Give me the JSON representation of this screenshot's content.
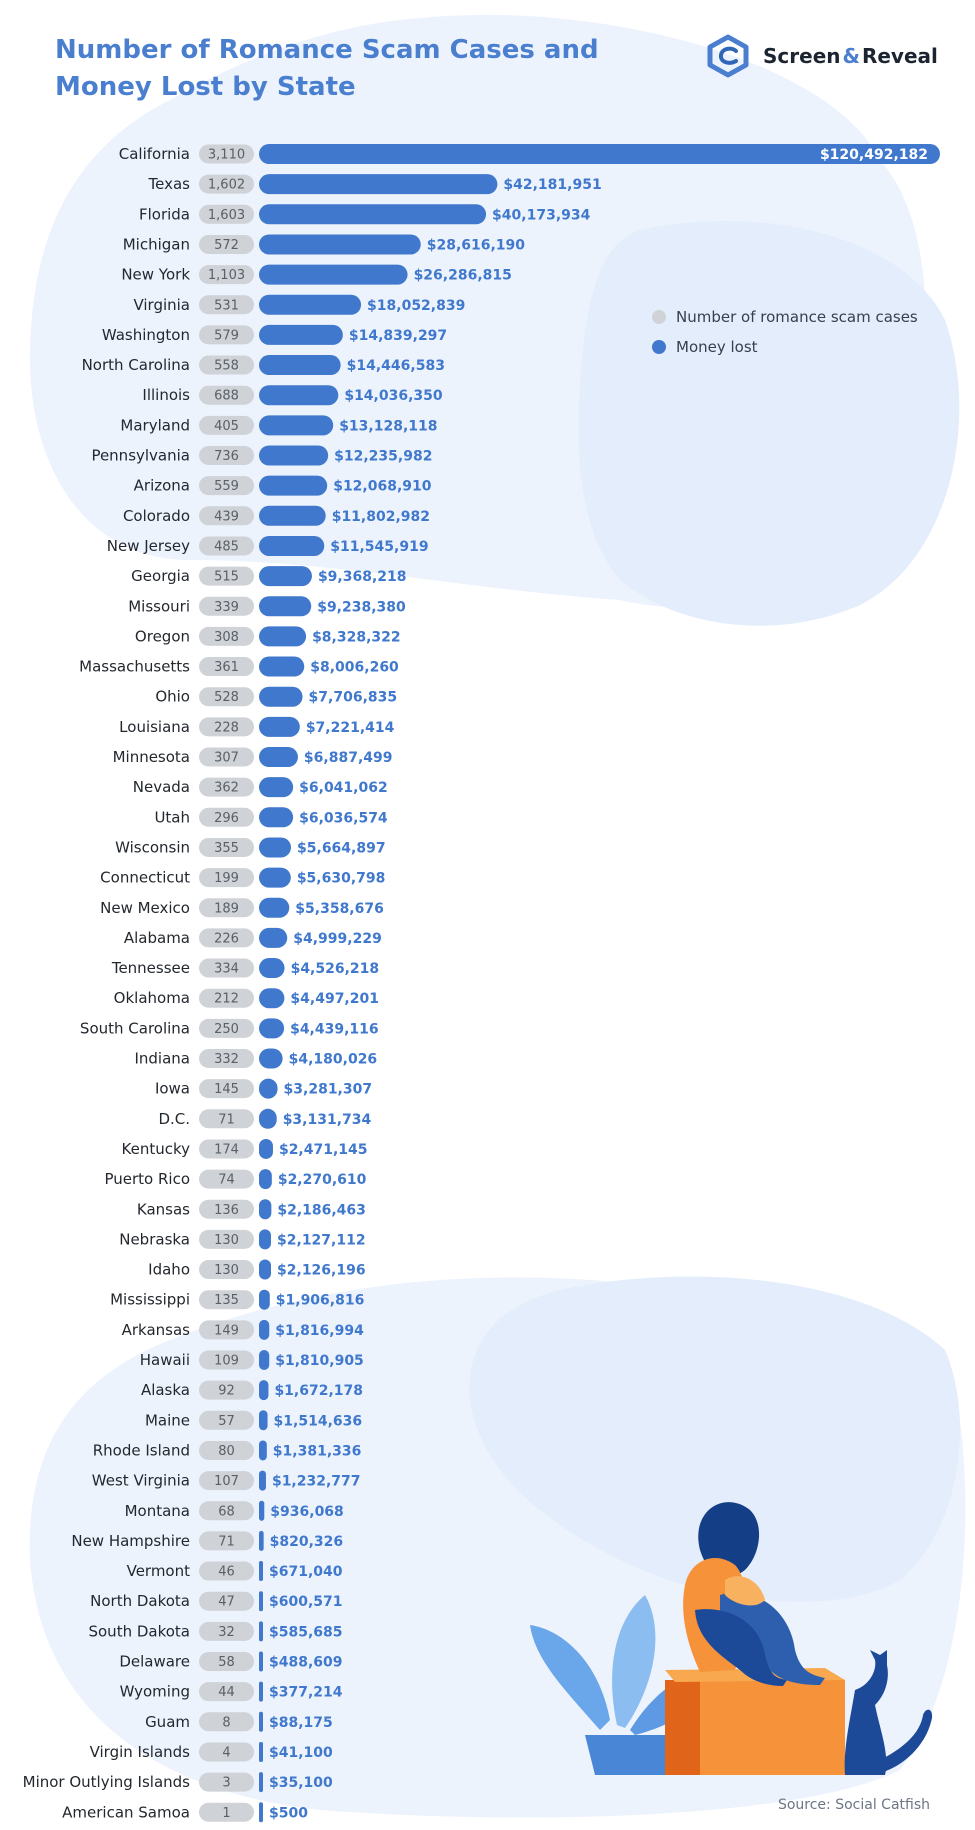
{
  "header": {
    "title": "Number of Romance Scam Cases and Money Lost by State"
  },
  "logo": {
    "icon": "screen-and-reveal-logo-icon",
    "name_part1": "Screen",
    "ampersand": "&",
    "name_part2": "Reveal"
  },
  "legend": {
    "cases_label": "Number of romance scam cases",
    "money_label": "Money lost"
  },
  "colors": {
    "title": "#4a7fd0",
    "bar": "#3f78cc",
    "bar_label": "#3f78cc",
    "cases_pill": "#cfd2d6",
    "cases_text": "#5a6068",
    "state_text": "#23282e",
    "blob": "#edf3fd"
  },
  "source": "Source: Social Catfish",
  "chart_data": {
    "type": "bar",
    "orientation": "horizontal",
    "categories": [
      "California",
      "Texas",
      "Florida",
      "Michigan",
      "New York",
      "Virginia",
      "Washington",
      "North Carolina",
      "Illinois",
      "Maryland",
      "Pennsylvania",
      "Arizona",
      "Colorado",
      "New Jersey",
      "Georgia",
      "Missouri",
      "Oregon",
      "Massachusetts",
      "Ohio",
      "Louisiana",
      "Minnesota",
      "Nevada",
      "Utah",
      "Wisconsin",
      "Connecticut",
      "New Mexico",
      "Alabama",
      "Tennessee",
      "Oklahoma",
      "South Carolina",
      "Indiana",
      "Iowa",
      "D.C.",
      "Kentucky",
      "Puerto Rico",
      "Kansas",
      "Nebraska",
      "Idaho",
      "Mississippi",
      "Arkansas",
      "Hawaii",
      "Alaska",
      "Maine",
      "Rhode Island",
      "West Virginia",
      "Montana",
      "New Hampshire",
      "Vermont",
      "North Dakota",
      "South Dakota",
      "Delaware",
      "Wyoming",
      "Guam",
      "Virgin Islands",
      "Minor Outlying Islands",
      "American Samoa"
    ],
    "series": [
      {
        "name": "Number of romance scam cases",
        "values": [
          3110,
          1602,
          1603,
          572,
          1103,
          531,
          579,
          558,
          688,
          405,
          736,
          559,
          439,
          485,
          515,
          339,
          308,
          361,
          528,
          228,
          307,
          362,
          296,
          355,
          199,
          189,
          226,
          334,
          212,
          250,
          332,
          145,
          71,
          174,
          74,
          136,
          130,
          130,
          135,
          149,
          109,
          92,
          57,
          80,
          107,
          68,
          71,
          46,
          47,
          32,
          58,
          44,
          8,
          4,
          3,
          1
        ],
        "labels": [
          "3,110",
          "1,602",
          "1,603",
          "572",
          "1,103",
          "531",
          "579",
          "558",
          "688",
          "405",
          "736",
          "559",
          "439",
          "485",
          "515",
          "339",
          "308",
          "361",
          "528",
          "228",
          "307",
          "362",
          "296",
          "355",
          "199",
          "189",
          "226",
          "334",
          "212",
          "250",
          "332",
          "145",
          "71",
          "174",
          "74",
          "136",
          "130",
          "130",
          "135",
          "149",
          "109",
          "92",
          "57",
          "80",
          "107",
          "68",
          "71",
          "46",
          "47",
          "32",
          "58",
          "44",
          "8",
          "4",
          "3",
          "1"
        ]
      },
      {
        "name": "Money lost",
        "values": [
          120492182,
          42181951,
          40173934,
          28616190,
          26286815,
          18052839,
          14839297,
          14446583,
          14036350,
          13128118,
          12235982,
          12068910,
          11802982,
          11545919,
          9368218,
          9238380,
          8328322,
          8006260,
          7706835,
          7221414,
          6887499,
          6041062,
          6036574,
          5664897,
          5630798,
          5358676,
          4999229,
          4526218,
          4497201,
          4439116,
          4180026,
          3281307,
          3131734,
          2471145,
          2270610,
          2186463,
          2127112,
          2126196,
          1906816,
          1816994,
          1810905,
          1672178,
          1514636,
          1381336,
          1232777,
          936068,
          820326,
          671040,
          600571,
          585685,
          488609,
          377214,
          88175,
          41100,
          35100,
          500
        ],
        "labels": [
          "$120,492,182",
          "$42,181,951",
          "$40,173,934",
          "$28,616,190",
          "$26,286,815",
          "$18,052,839",
          "$14,839,297",
          "$14,446,583",
          "$14,036,350",
          "$13,128,118",
          "$12,235,982",
          "$12,068,910",
          "$11,802,982",
          "$11,545,919",
          "$9,368,218",
          "$9,238,380",
          "$8,328,322",
          "$8,006,260",
          "$7,706,835",
          "$7,221,414",
          "$6,887,499",
          "$6,041,062",
          "$6,036,574",
          "$5,664,897",
          "$5,630,798",
          "$5,358,676",
          "$4,999,229",
          "$4,526,218",
          "$4,497,201",
          "$4,439,116",
          "$4,180,026",
          "$3,281,307",
          "$3,131,734",
          "$2,471,145",
          "$2,270,610",
          "$2,186,463",
          "$2,127,112",
          "$2,126,196",
          "$1,906,816",
          "$1,816,994",
          "$1,810,905",
          "$1,672,178",
          "$1,514,636",
          "$1,381,336",
          "$1,232,777",
          "$936,068",
          "$820,326",
          "$671,040",
          "$600,571",
          "$585,685",
          "$488,609",
          "$377,214",
          "$88,175",
          "$41,100",
          "$35,100",
          "$500"
        ]
      }
    ],
    "title": "Number of Romance Scam Cases and Money Lost by State",
    "legend": "top-right",
    "grid": false
  }
}
